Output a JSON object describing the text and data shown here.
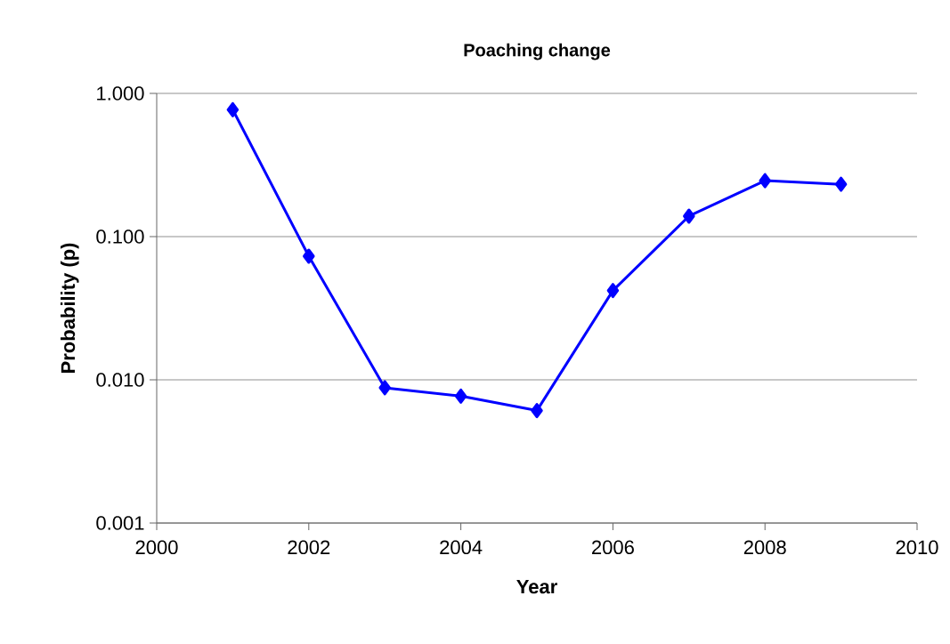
{
  "chart_data": {
    "type": "line",
    "title": "Poaching change",
    "xlabel": "Year",
    "ylabel": "Probability (p)",
    "x": [
      2001,
      2002,
      2003,
      2004,
      2005,
      2006,
      2007,
      2008,
      2009
    ],
    "series": [
      {
        "color": "#0000ff",
        "values": [
          0.77,
          0.073,
          0.0088,
          0.0077,
          0.0061,
          0.042,
          0.139,
          0.246,
          0.232
        ]
      }
    ],
    "xlim": [
      2000,
      2010
    ],
    "xticks": [
      2000,
      2002,
      2004,
      2006,
      2008,
      2010
    ],
    "ylim": [
      0.001,
      1
    ],
    "yticks": [
      {
        "value": 0.001,
        "label": "0.001"
      },
      {
        "value": 0.01,
        "label": "0.010"
      },
      {
        "value": 0.1,
        "label": "0.100"
      },
      {
        "value": 1,
        "label": "1.000"
      }
    ],
    "log": "y",
    "grid": "y",
    "marker": "diamond",
    "line_style": "solid"
  }
}
